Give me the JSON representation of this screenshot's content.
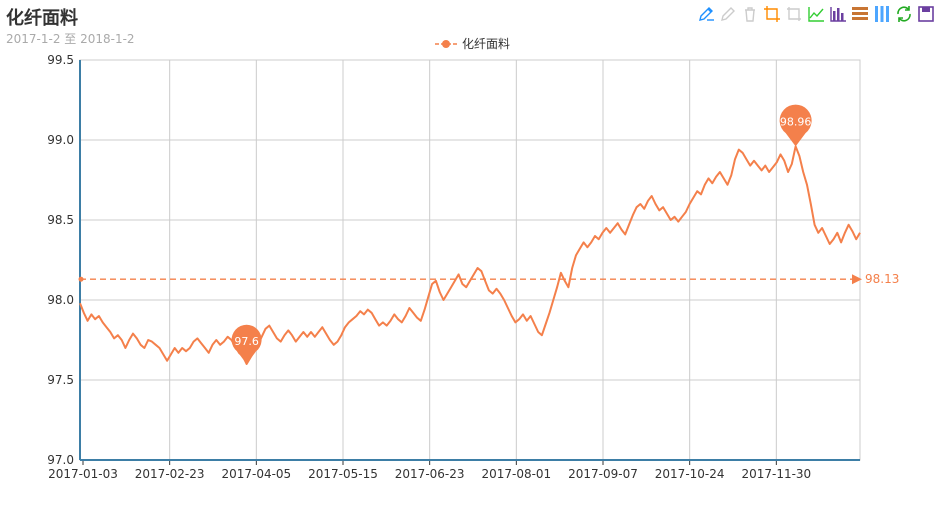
{
  "header": {
    "title": "化纤面料",
    "subtitle": "2017-1-2 至 2018-1-2"
  },
  "toolbox": [
    {
      "name": "mark-icon",
      "color": "#1e90ff"
    },
    {
      "name": "mark-undo-icon",
      "color": "#cccccc"
    },
    {
      "name": "mark-clear-icon",
      "color": "#cccccc"
    },
    {
      "name": "zoom-icon",
      "color": "#ff8c00"
    },
    {
      "name": "zoom-reset-icon",
      "color": "#cccccc"
    },
    {
      "name": "line-chart-icon",
      "color": "#32cd32"
    },
    {
      "name": "bar-chart-icon",
      "color": "#6b3fa0"
    },
    {
      "name": "stack-icon",
      "color": "#c87533"
    },
    {
      "name": "tiled-icon",
      "color": "#4da6ff"
    },
    {
      "name": "restore-icon",
      "color": "#22aa22"
    },
    {
      "name": "save-image-icon",
      "color": "#6b3fa0"
    }
  ],
  "chart_data": {
    "type": "line",
    "legend": [
      "化纤面料"
    ],
    "color": "#f4804b",
    "ylim": [
      97.0,
      99.5
    ],
    "yticks": [
      "97.0",
      "97.5",
      "98.0",
      "98.5",
      "99.0",
      "99.5"
    ],
    "xtick_labels": [
      "2017-01-03",
      "2017-02-23",
      "2017-04-05",
      "2017-05-15",
      "2017-06-23",
      "2017-08-01",
      "2017-09-07",
      "2017-10-24",
      "2017-11-30"
    ],
    "grid": true,
    "series": [
      {
        "name": "化纤面料",
        "values": [
          97.98,
          97.92,
          97.87,
          97.91,
          97.88,
          97.9,
          97.86,
          97.83,
          97.8,
          97.76,
          97.78,
          97.75,
          97.7,
          97.75,
          97.79,
          97.76,
          97.72,
          97.7,
          97.75,
          97.74,
          97.72,
          97.7,
          97.66,
          97.62,
          97.66,
          97.7,
          97.67,
          97.7,
          97.68,
          97.7,
          97.74,
          97.76,
          97.73,
          97.7,
          97.67,
          97.72,
          97.75,
          97.72,
          97.74,
          97.77,
          97.75,
          97.71,
          97.67,
          97.65,
          97.6,
          97.64,
          97.68,
          97.72,
          97.77,
          97.82,
          97.84,
          97.8,
          97.76,
          97.74,
          97.78,
          97.81,
          97.78,
          97.74,
          97.77,
          97.8,
          97.77,
          97.8,
          97.77,
          97.8,
          97.83,
          97.79,
          97.75,
          97.72,
          97.74,
          97.78,
          97.83,
          97.86,
          97.88,
          97.9,
          97.93,
          97.91,
          97.94,
          97.92,
          97.88,
          97.84,
          97.86,
          97.84,
          97.87,
          97.91,
          97.88,
          97.86,
          97.9,
          97.95,
          97.92,
          97.89,
          97.87,
          97.94,
          98.02,
          98.1,
          98.12,
          98.05,
          98.0,
          98.04,
          98.08,
          98.12,
          98.16,
          98.1,
          98.08,
          98.12,
          98.16,
          98.2,
          98.18,
          98.12,
          98.06,
          98.04,
          98.07,
          98.04,
          98.0,
          97.95,
          97.9,
          97.86,
          97.88,
          97.91,
          97.87,
          97.9,
          97.85,
          97.8,
          97.78,
          97.85,
          97.92,
          98.0,
          98.08,
          98.17,
          98.12,
          98.08,
          98.2,
          98.28,
          98.32,
          98.36,
          98.33,
          98.36,
          98.4,
          98.38,
          98.42,
          98.45,
          98.42,
          98.45,
          98.48,
          98.44,
          98.41,
          98.47,
          98.53,
          98.58,
          98.6,
          98.57,
          98.62,
          98.65,
          98.6,
          98.56,
          98.58,
          98.54,
          98.5,
          98.52,
          98.49,
          98.52,
          98.55,
          98.6,
          98.64,
          98.68,
          98.66,
          98.72,
          98.76,
          98.73,
          98.77,
          98.8,
          98.76,
          98.72,
          98.78,
          98.88,
          98.94,
          98.92,
          98.88,
          98.84,
          98.87,
          98.84,
          98.81,
          98.84,
          98.8,
          98.83,
          98.86,
          98.91,
          98.87,
          98.8,
          98.85,
          98.96,
          98.9,
          98.8,
          98.72,
          98.6,
          98.47,
          98.42,
          98.45,
          98.4,
          98.35,
          98.38,
          98.42,
          98.36,
          98.42,
          98.47,
          98.43,
          98.38,
          98.42
        ],
        "max": {
          "label": "98.96"
        },
        "min": {
          "label": "97.6"
        },
        "average": {
          "label": "98.13",
          "value": 98.13
        }
      }
    ]
  }
}
